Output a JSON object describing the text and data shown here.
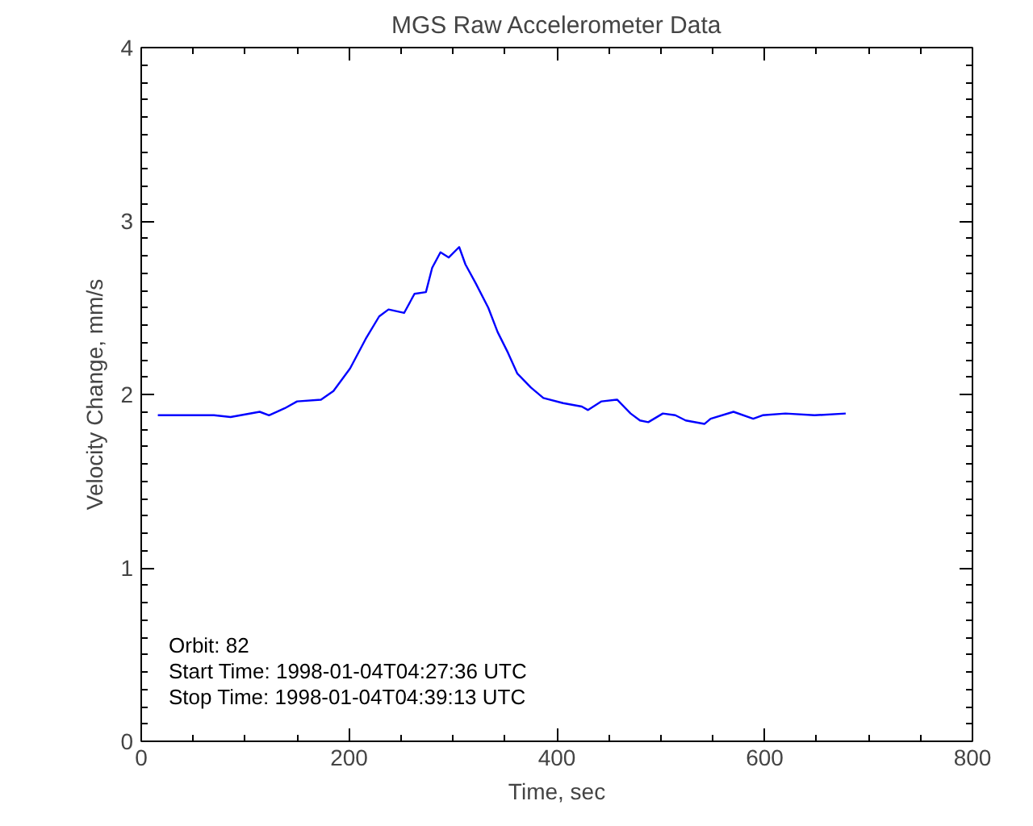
{
  "chart_data": {
    "type": "line",
    "title": "MGS Raw Accelerometer Data",
    "xlabel": "Time, sec",
    "ylabel": "Velocity Change, mm/s",
    "xlim": [
      0,
      800
    ],
    "xticks": [
      0,
      200,
      400,
      600,
      800
    ],
    "ylim": [
      0,
      4
    ],
    "yticks": [
      0,
      1,
      2,
      3,
      4
    ],
    "grid": false,
    "marker": "none",
    "line_style": "solid",
    "annotations": [
      "Orbit: 82",
      "Start Time: 1998-01-04T04:27:36 UTC",
      "Stop Time: 1998-01-04T04:39:13 UTC"
    ],
    "series": [
      {
        "color": "#0000ff",
        "x": [
          16,
          70,
          86,
          114,
          123,
          138,
          150,
          173,
          185,
          201,
          216,
          229,
          238,
          253,
          263,
          274,
          280,
          288,
          296,
          306,
          312,
          322,
          334,
          343,
          353,
          362,
          375,
          387,
          406,
          424,
          430,
          443,
          458,
          471,
          480,
          488,
          502,
          514,
          524,
          542,
          548,
          570,
          589,
          598,
          620,
          648,
          678
        ],
        "values": [
          1.88,
          1.88,
          1.87,
          1.9,
          1.88,
          1.92,
          1.96,
          1.97,
          2.02,
          2.15,
          2.32,
          2.45,
          2.49,
          2.47,
          2.58,
          2.59,
          2.73,
          2.82,
          2.79,
          2.85,
          2.75,
          2.64,
          2.5,
          2.36,
          2.24,
          2.12,
          2.04,
          1.98,
          1.95,
          1.93,
          1.91,
          1.96,
          1.97,
          1.89,
          1.85,
          1.84,
          1.89,
          1.88,
          1.85,
          1.83,
          1.86,
          1.9,
          1.86,
          1.88,
          1.89,
          1.88,
          1.89
        ]
      }
    ]
  }
}
